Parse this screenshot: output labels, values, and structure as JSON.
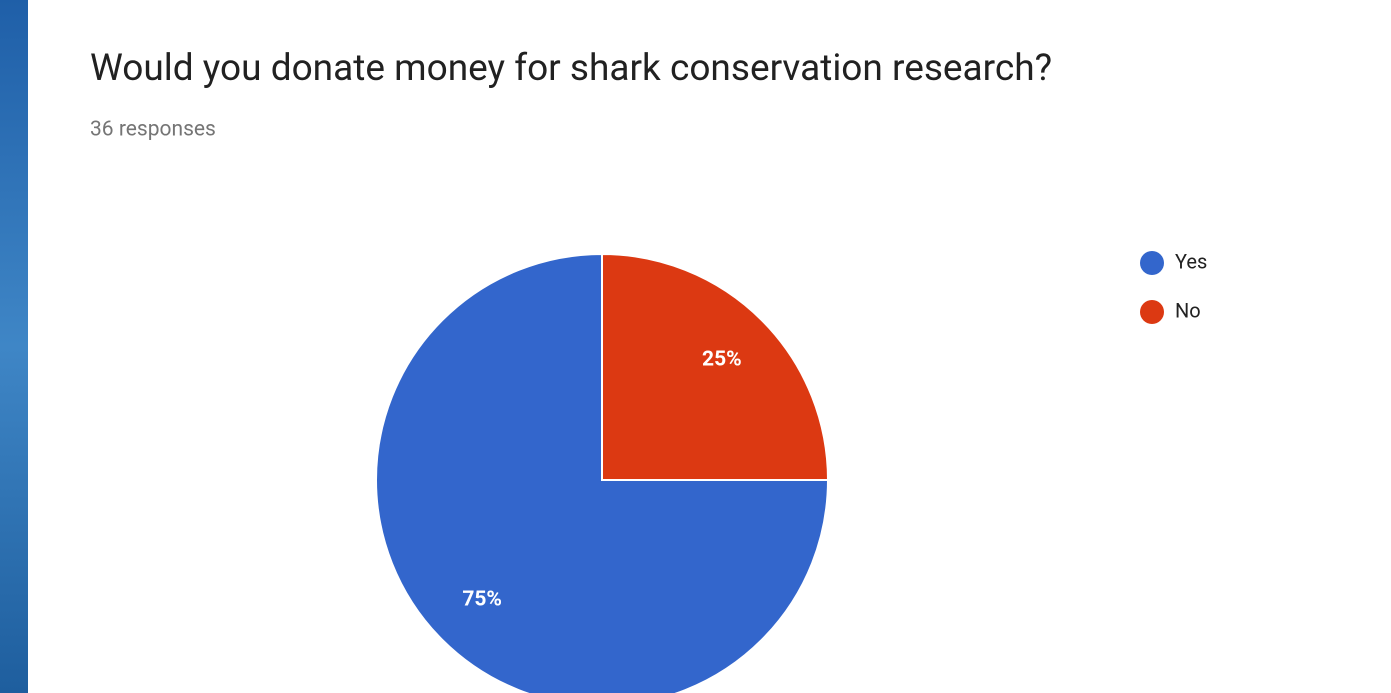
{
  "chart_data": {
    "type": "pie",
    "title": "Would you donate money for shark conservation research?",
    "subtitle": "36 responses",
    "categories": [
      "Yes",
      "No"
    ],
    "values": [
      75,
      25
    ],
    "value_labels": [
      "75%",
      "25%"
    ],
    "colors": [
      "#3366cc",
      "#dc3912"
    ],
    "legend": "right"
  }
}
